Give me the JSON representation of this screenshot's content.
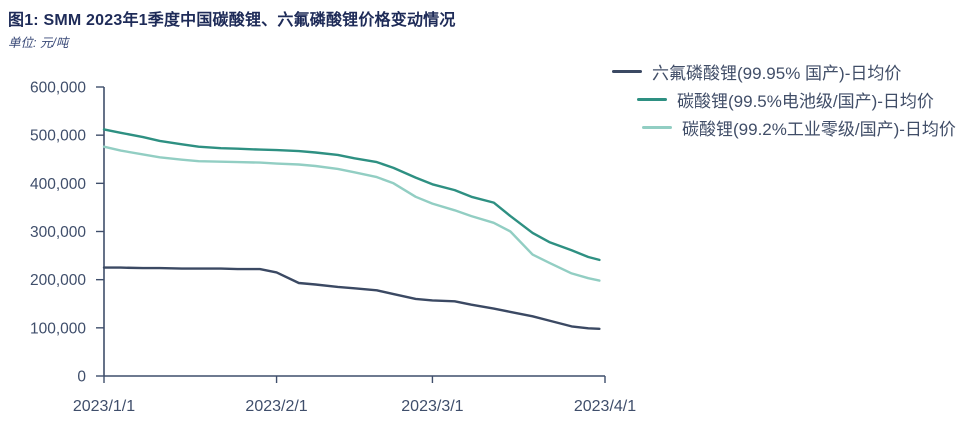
{
  "header": {
    "title": "图1: SMM 2023年1季度中国碳酸锂、六氟磷酸锂价格变动情况",
    "subtitle": "单位: 元/吨"
  },
  "colors": {
    "title_text": "#1e2b58",
    "axis": "#3f4e6b",
    "background": "#ffffff"
  },
  "chart_data": {
    "type": "line",
    "title": "SMM 2023年1季度中国碳酸锂、六氟磷酸锂价格变动情况",
    "unit_label": "单位: 元/吨",
    "grid": false,
    "legend_position": "top-right",
    "ylim": [
      0,
      600000
    ],
    "y_tick_labels": [
      "0",
      "100,000",
      "200,000",
      "300,000",
      "400,000",
      "500,000",
      "600,000"
    ],
    "x_tick_labels": [
      "2023/1/1",
      "2023/2/1",
      "2023/3/1",
      "2023/4/1"
    ],
    "x": [
      "2023/1/1",
      "2023/1/4",
      "2023/1/8",
      "2023/1/11",
      "2023/1/15",
      "2023/1/18",
      "2023/1/22",
      "2023/1/25",
      "2023/1/29",
      "2023/2/1",
      "2023/2/5",
      "2023/2/8",
      "2023/2/12",
      "2023/2/15",
      "2023/2/19",
      "2023/2/22",
      "2023/2/26",
      "2023/3/1",
      "2023/3/5",
      "2023/3/8",
      "2023/3/12",
      "2023/3/15",
      "2023/3/19",
      "2023/3/22",
      "2023/3/26",
      "2023/3/29",
      "2023/3/31"
    ],
    "series": [
      {
        "name": "六氟磷酸锂(99.95% 国产)-日均价",
        "color": "#3b4963",
        "values": [
          225000,
          225000,
          224000,
          224000,
          223000,
          223000,
          223000,
          222000,
          222000,
          215000,
          193000,
          190000,
          185000,
          182000,
          178000,
          170000,
          160000,
          157000,
          155000,
          148000,
          140000,
          133000,
          124000,
          115000,
          103000,
          99000,
          98000
        ]
      },
      {
        "name": "碳酸锂(99.5%电池级/国产)-日均价",
        "color": "#2e9082",
        "values": [
          512000,
          505000,
          496000,
          488000,
          481000,
          476000,
          473000,
          472000,
          470000,
          469000,
          467000,
          464000,
          459000,
          452000,
          444000,
          432000,
          412000,
          398000,
          386000,
          372000,
          360000,
          332000,
          297000,
          278000,
          261000,
          247000,
          241000
        ]
      },
      {
        "name": "碳酸锂(99.2%工业零级/国产)-日均价",
        "color": "#92cec3",
        "values": [
          476000,
          468000,
          460000,
          454000,
          449000,
          446000,
          445000,
          444000,
          443000,
          441000,
          439000,
          436000,
          430000,
          423000,
          413000,
          400000,
          372000,
          358000,
          344000,
          332000,
          318000,
          300000,
          252000,
          235000,
          213000,
          203000,
          198000
        ]
      }
    ]
  }
}
